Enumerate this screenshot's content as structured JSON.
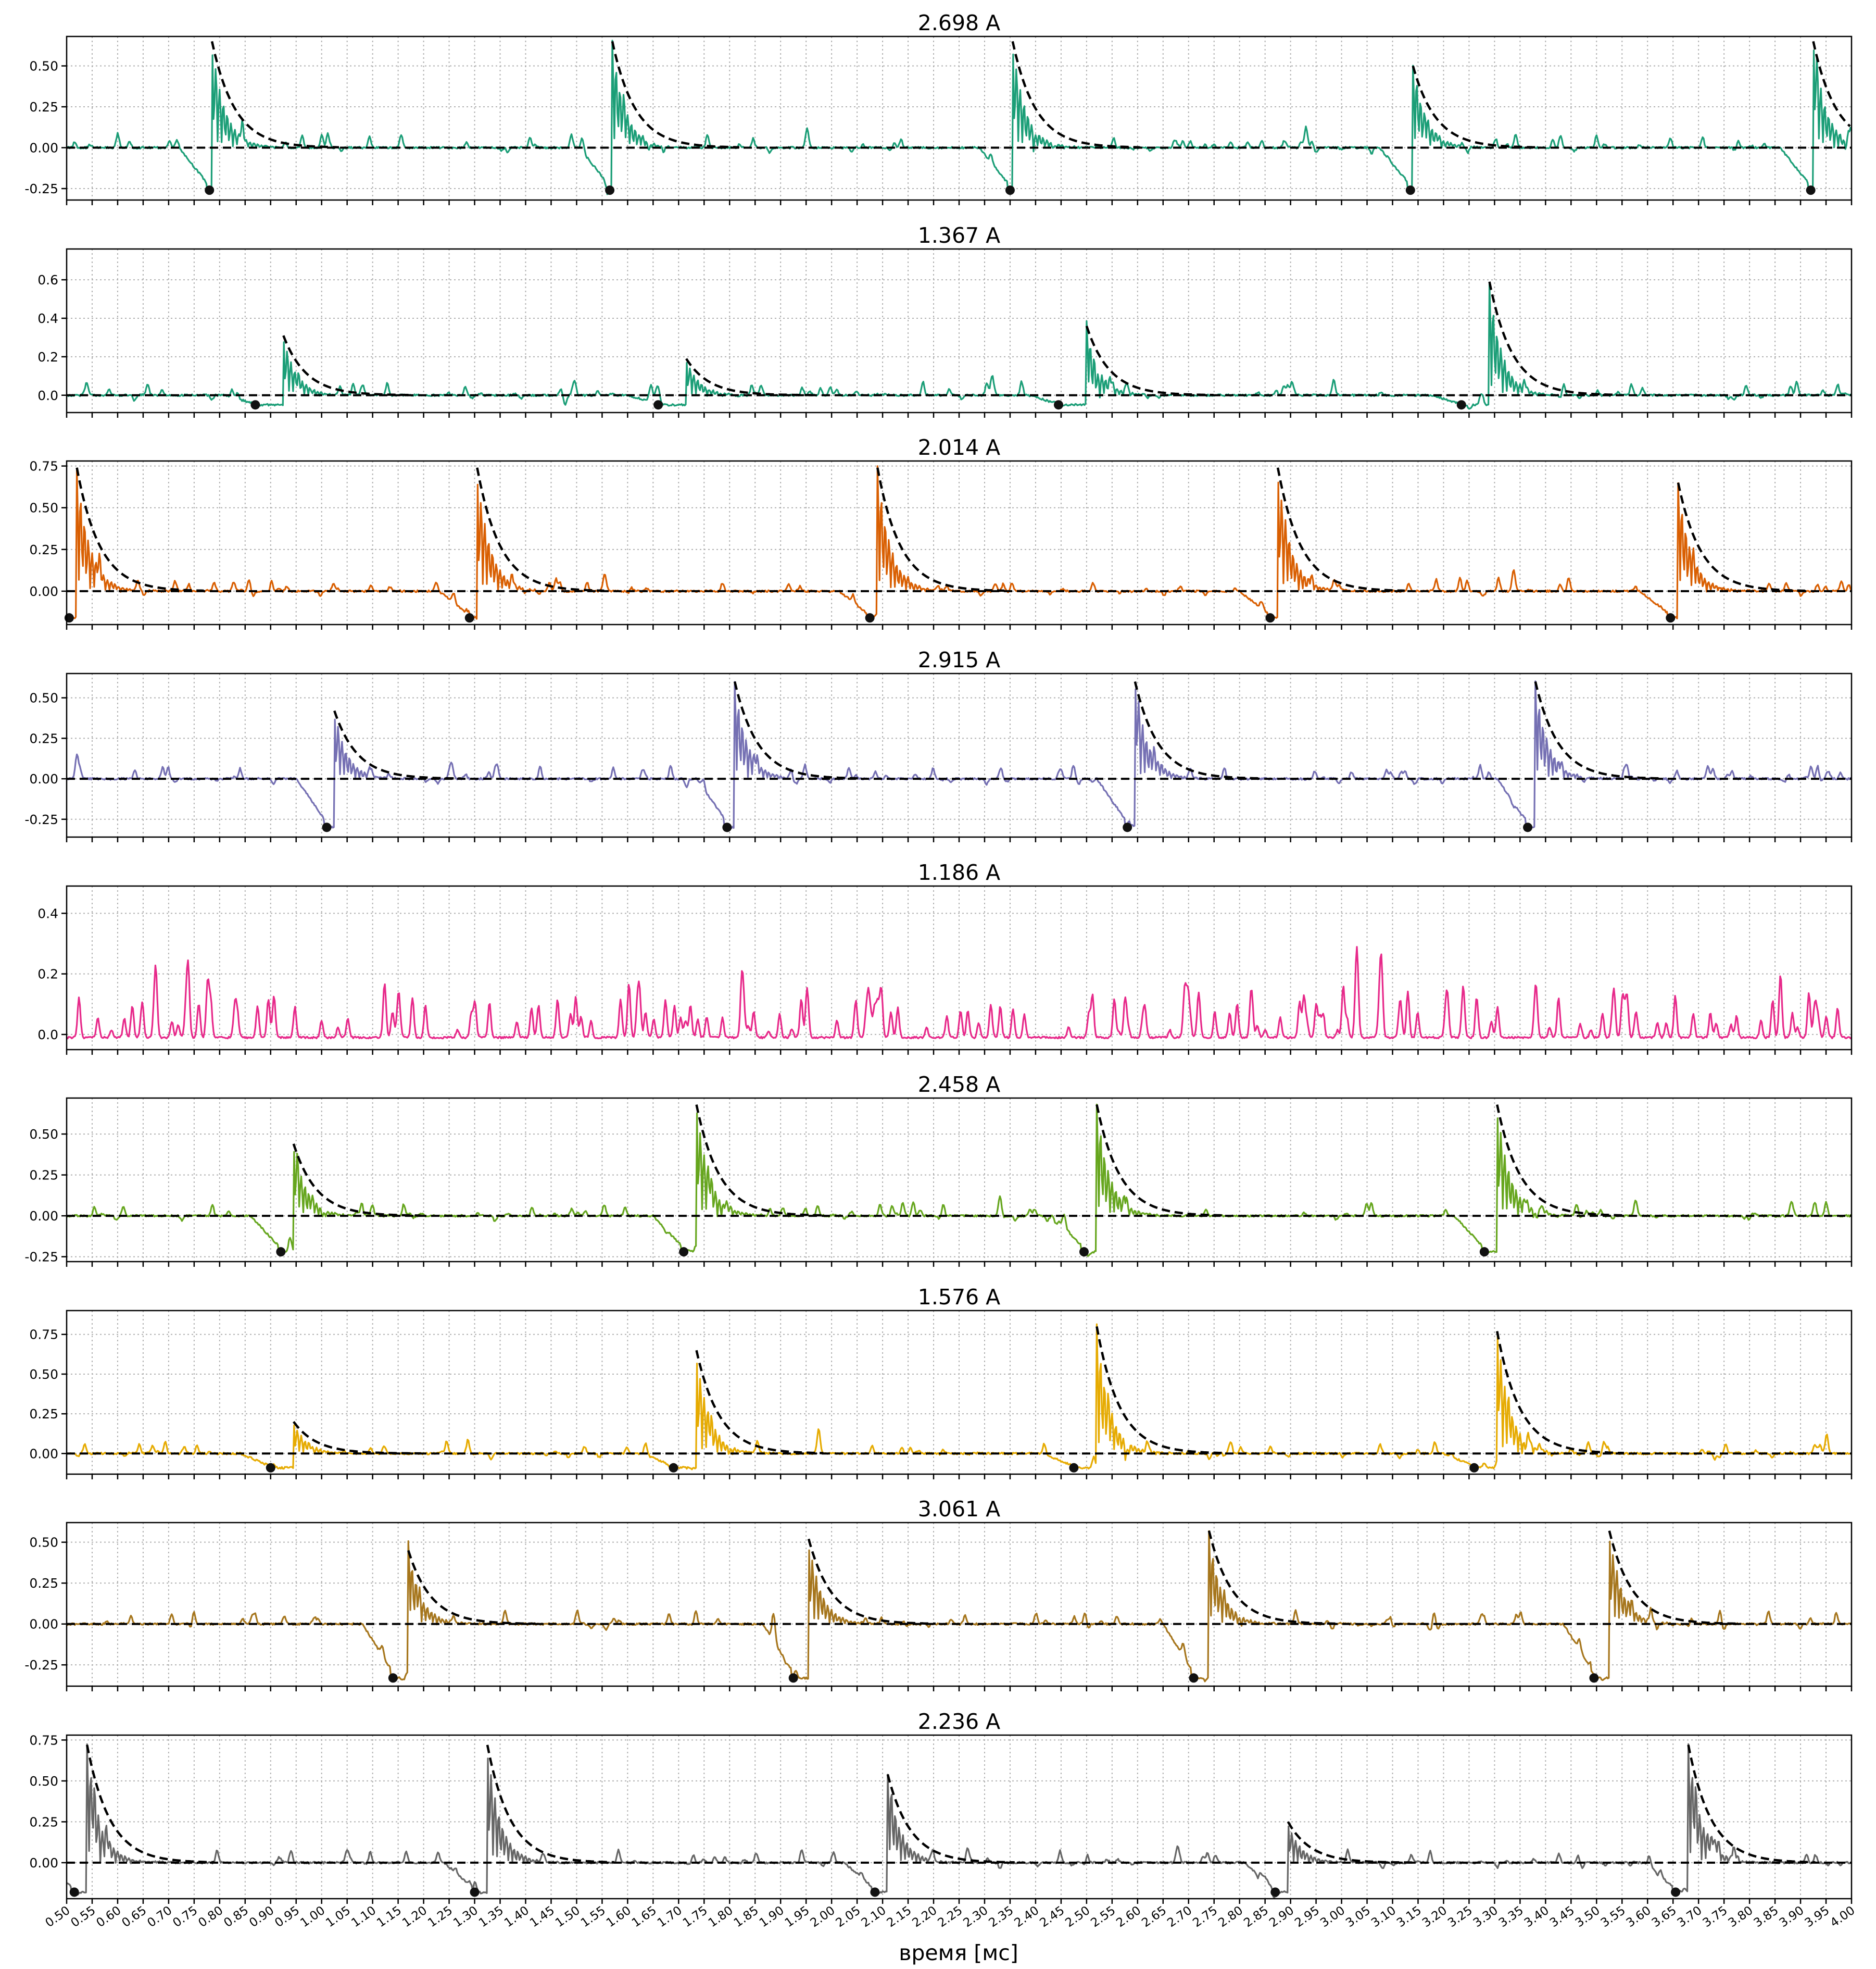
{
  "chart_data": {
    "type": "line",
    "xlabel": "время [мс]",
    "xlim": [
      0.5,
      4.0
    ],
    "xticks": [
      "0.50",
      "0.55",
      "0.60",
      "0.65",
      "0.70",
      "0.75",
      "0.80",
      "0.85",
      "0.90",
      "0.95",
      "1.00",
      "1.05",
      "1.10",
      "1.15",
      "1.20",
      "1.25",
      "1.30",
      "1.35",
      "1.40",
      "1.45",
      "1.50",
      "1.55",
      "1.60",
      "1.65",
      "1.70",
      "1.75",
      "1.80",
      "1.85",
      "1.90",
      "1.95",
      "2.00",
      "2.05",
      "2.10",
      "2.15",
      "2.20",
      "2.25",
      "2.30",
      "2.35",
      "2.40",
      "2.45",
      "2.50",
      "2.55",
      "2.60",
      "2.65",
      "2.70",
      "2.75",
      "2.80",
      "2.85",
      "2.90",
      "2.95",
      "3.00",
      "3.05",
      "3.10",
      "3.15",
      "3.20",
      "3.25",
      "3.30",
      "3.35",
      "3.40",
      "3.45",
      "3.50",
      "3.55",
      "3.60",
      "3.65",
      "3.70",
      "3.75",
      "3.80",
      "3.85",
      "3.90",
      "3.95",
      "4.00"
    ],
    "grid": true,
    "panels": [
      {
        "title": "2.698 A",
        "color": "#1b9e77",
        "ylim": [
          -0.32,
          0.68
        ],
        "yticks": [
          "-0.25",
          "0.00",
          "0.25",
          "0.50"
        ],
        "yvals": [
          -0.25,
          0.0,
          0.25,
          0.5
        ],
        "events": [
          {
            "dip_x": 0.78,
            "dip_y": -0.26,
            "peak_x": 0.785,
            "peak_y": 0.65
          },
          {
            "dip_x": 1.565,
            "dip_y": -0.26,
            "peak_x": 1.57,
            "peak_y": 0.65
          },
          {
            "dip_x": 2.35,
            "dip_y": -0.26,
            "peak_x": 2.355,
            "peak_y": 0.65
          },
          {
            "dip_x": 3.135,
            "dip_y": -0.26,
            "peak_x": 3.14,
            "peak_y": 0.5
          },
          {
            "dip_x": 3.92,
            "dip_y": -0.26,
            "peak_x": 3.925,
            "peak_y": 0.65
          }
        ]
      },
      {
        "title": "1.367 A",
        "color": "#1b9e77",
        "ylim": [
          -0.09,
          0.76
        ],
        "yticks": [
          "0.0",
          "0.2",
          "0.4",
          "0.6"
        ],
        "yvals": [
          0.0,
          0.2,
          0.4,
          0.6
        ],
        "events": [
          {
            "dip_x": 0.87,
            "dip_y": -0.05,
            "peak_x": 0.925,
            "peak_y": 0.31
          },
          {
            "dip_x": 1.66,
            "dip_y": -0.05,
            "peak_x": 1.715,
            "peak_y": 0.19
          },
          {
            "dip_x": 2.445,
            "dip_y": -0.05,
            "peak_x": 2.5,
            "peak_y": 0.36
          },
          {
            "dip_x": 3.235,
            "dip_y": -0.05,
            "peak_x": 3.29,
            "peak_y": 0.59
          }
        ]
      },
      {
        "title": "2.014 A",
        "color": "#d95f02",
        "ylim": [
          -0.2,
          0.78
        ],
        "yticks": [
          "0.00",
          "0.25",
          "0.50",
          "0.75"
        ],
        "yvals": [
          0.0,
          0.25,
          0.5,
          0.75
        ],
        "events": [
          {
            "dip_x": 0.505,
            "dip_y": -0.16,
            "peak_x": 0.52,
            "peak_y": 0.74
          },
          {
            "dip_x": 1.29,
            "dip_y": -0.16,
            "peak_x": 1.305,
            "peak_y": 0.74
          },
          {
            "dip_x": 2.075,
            "dip_y": -0.16,
            "peak_x": 2.09,
            "peak_y": 0.74
          },
          {
            "dip_x": 2.86,
            "dip_y": -0.16,
            "peak_x": 2.875,
            "peak_y": 0.74
          },
          {
            "dip_x": 3.645,
            "dip_y": -0.16,
            "peak_x": 3.66,
            "peak_y": 0.65
          }
        ]
      },
      {
        "title": "2.915 A",
        "color": "#7570b3",
        "ylim": [
          -0.36,
          0.65
        ],
        "yticks": [
          "-0.25",
          "0.00",
          "0.25",
          "0.50"
        ],
        "yvals": [
          -0.25,
          0.0,
          0.25,
          0.5
        ],
        "events": [
          {
            "dip_x": 1.01,
            "dip_y": -0.3,
            "peak_x": 1.025,
            "peak_y": 0.42
          },
          {
            "dip_x": 1.795,
            "dip_y": -0.3,
            "peak_x": 1.81,
            "peak_y": 0.6
          },
          {
            "dip_x": 2.58,
            "dip_y": -0.3,
            "peak_x": 2.595,
            "peak_y": 0.6
          },
          {
            "dip_x": 3.365,
            "dip_y": -0.3,
            "peak_x": 3.38,
            "peak_y": 0.6
          }
        ]
      },
      {
        "title": "1.186 A",
        "color": "#e7298a",
        "ylim": [
          -0.05,
          0.49
        ],
        "yticks": [
          "0.0",
          "0.2",
          "0.4"
        ],
        "yvals": [
          0.0,
          0.2,
          0.4
        ],
        "events": []
      },
      {
        "title": "2.458 A",
        "color": "#66a61e",
        "ylim": [
          -0.28,
          0.72
        ],
        "yticks": [
          "-0.25",
          "0.00",
          "0.25",
          "0.50"
        ],
        "yvals": [
          -0.25,
          0.0,
          0.25,
          0.5
        ],
        "events": [
          {
            "dip_x": 0.92,
            "dip_y": -0.22,
            "peak_x": 0.945,
            "peak_y": 0.44
          },
          {
            "dip_x": 1.71,
            "dip_y": -0.22,
            "peak_x": 1.735,
            "peak_y": 0.68
          },
          {
            "dip_x": 2.495,
            "dip_y": -0.22,
            "peak_x": 2.52,
            "peak_y": 0.68
          },
          {
            "dip_x": 3.28,
            "dip_y": -0.22,
            "peak_x": 3.305,
            "peak_y": 0.68
          }
        ]
      },
      {
        "title": "1.576 A",
        "color": "#e6ab02",
        "ylim": [
          -0.13,
          0.9
        ],
        "yticks": [
          "0.00",
          "0.25",
          "0.50",
          "0.75"
        ],
        "yvals": [
          0.0,
          0.25,
          0.5,
          0.75
        ],
        "events": [
          {
            "dip_x": 0.9,
            "dip_y": -0.09,
            "peak_x": 0.945,
            "peak_y": 0.2
          },
          {
            "dip_x": 1.69,
            "dip_y": -0.09,
            "peak_x": 1.735,
            "peak_y": 0.65
          },
          {
            "dip_x": 2.475,
            "dip_y": -0.09,
            "peak_x": 2.52,
            "peak_y": 0.8
          },
          {
            "dip_x": 3.26,
            "dip_y": -0.09,
            "peak_x": 3.305,
            "peak_y": 0.77
          }
        ]
      },
      {
        "title": "3.061 A",
        "color": "#a6761d",
        "ylim": [
          -0.38,
          0.62
        ],
        "yticks": [
          "-0.25",
          "0.00",
          "0.25",
          "0.50"
        ],
        "yvals": [
          -0.25,
          0.0,
          0.25,
          0.5
        ],
        "events": [
          {
            "dip_x": 1.14,
            "dip_y": -0.33,
            "peak_x": 1.17,
            "peak_y": 0.45
          },
          {
            "dip_x": 1.925,
            "dip_y": -0.33,
            "peak_x": 1.955,
            "peak_y": 0.52
          },
          {
            "dip_x": 2.71,
            "dip_y": -0.33,
            "peak_x": 2.74,
            "peak_y": 0.57
          },
          {
            "dip_x": 3.495,
            "dip_y": -0.33,
            "peak_x": 3.525,
            "peak_y": 0.57
          }
        ]
      },
      {
        "title": "2.236 A",
        "color": "#666666",
        "ylim": [
          -0.22,
          0.78
        ],
        "yticks": [
          "0.00",
          "0.25",
          "0.50",
          "0.75"
        ],
        "yvals": [
          0.0,
          0.25,
          0.5,
          0.75
        ],
        "events": [
          {
            "dip_x": 0.515,
            "dip_y": -0.18,
            "peak_x": 0.54,
            "peak_y": 0.72
          },
          {
            "dip_x": 1.3,
            "dip_y": -0.18,
            "peak_x": 1.325,
            "peak_y": 0.72
          },
          {
            "dip_x": 2.085,
            "dip_y": -0.18,
            "peak_x": 2.11,
            "peak_y": 0.54
          },
          {
            "dip_x": 2.87,
            "dip_y": -0.18,
            "peak_x": 2.895,
            "peak_y": 0.25
          },
          {
            "dip_x": 3.655,
            "dip_y": -0.18,
            "peak_x": 3.68,
            "peak_y": 0.72
          }
        ]
      }
    ]
  }
}
